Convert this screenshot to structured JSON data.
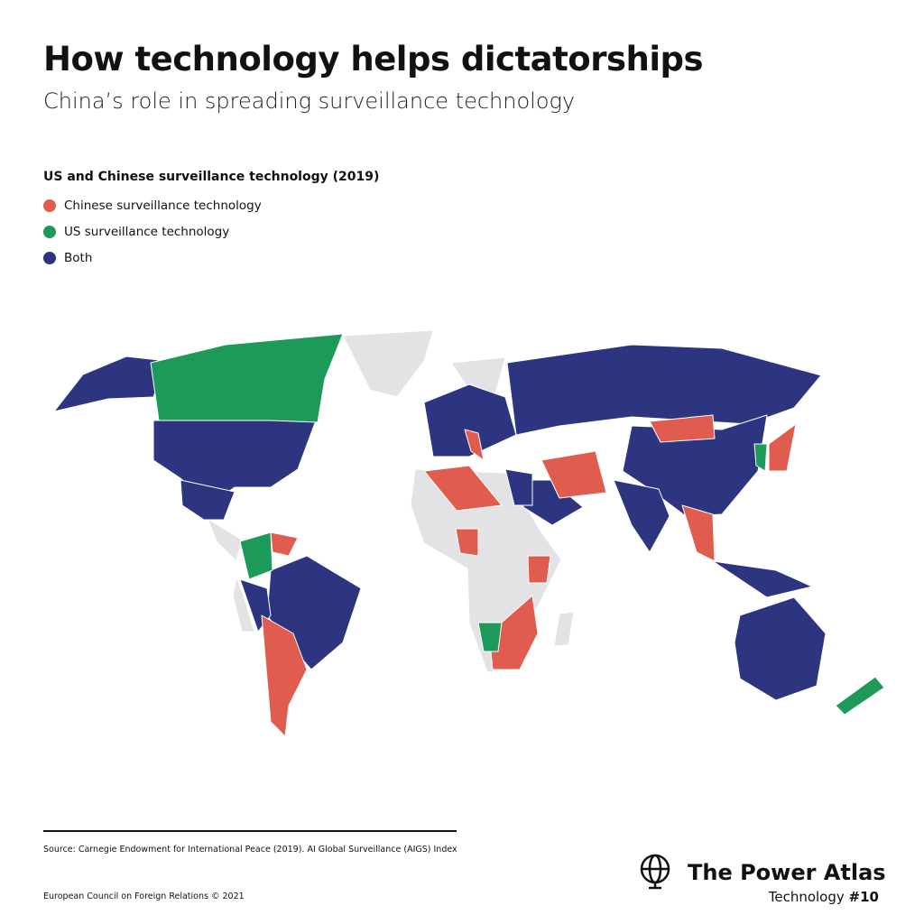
{
  "header": {
    "title": "How technology helps dictatorships",
    "subtitle": "China’s role in spreading surveillance technology"
  },
  "legend": {
    "title": "US and Chinese surveillance technology (2019)",
    "items": [
      {
        "label": "Chinese surveillance technology",
        "color": "#e05c4e"
      },
      {
        "label": "US surveillance technology",
        "color": "#1d9a5a"
      },
      {
        "label": "Both",
        "color": "#2e3580"
      }
    ]
  },
  "footer": {
    "source": "Source: Carnegie Endowment for International Peace (2019). AI Global Surveillance (AIGS) Index",
    "organization": "European Council on Foreign Relations © 2021",
    "brand": "The Power Atlas",
    "series": "Technology",
    "number": "#10"
  }
}
